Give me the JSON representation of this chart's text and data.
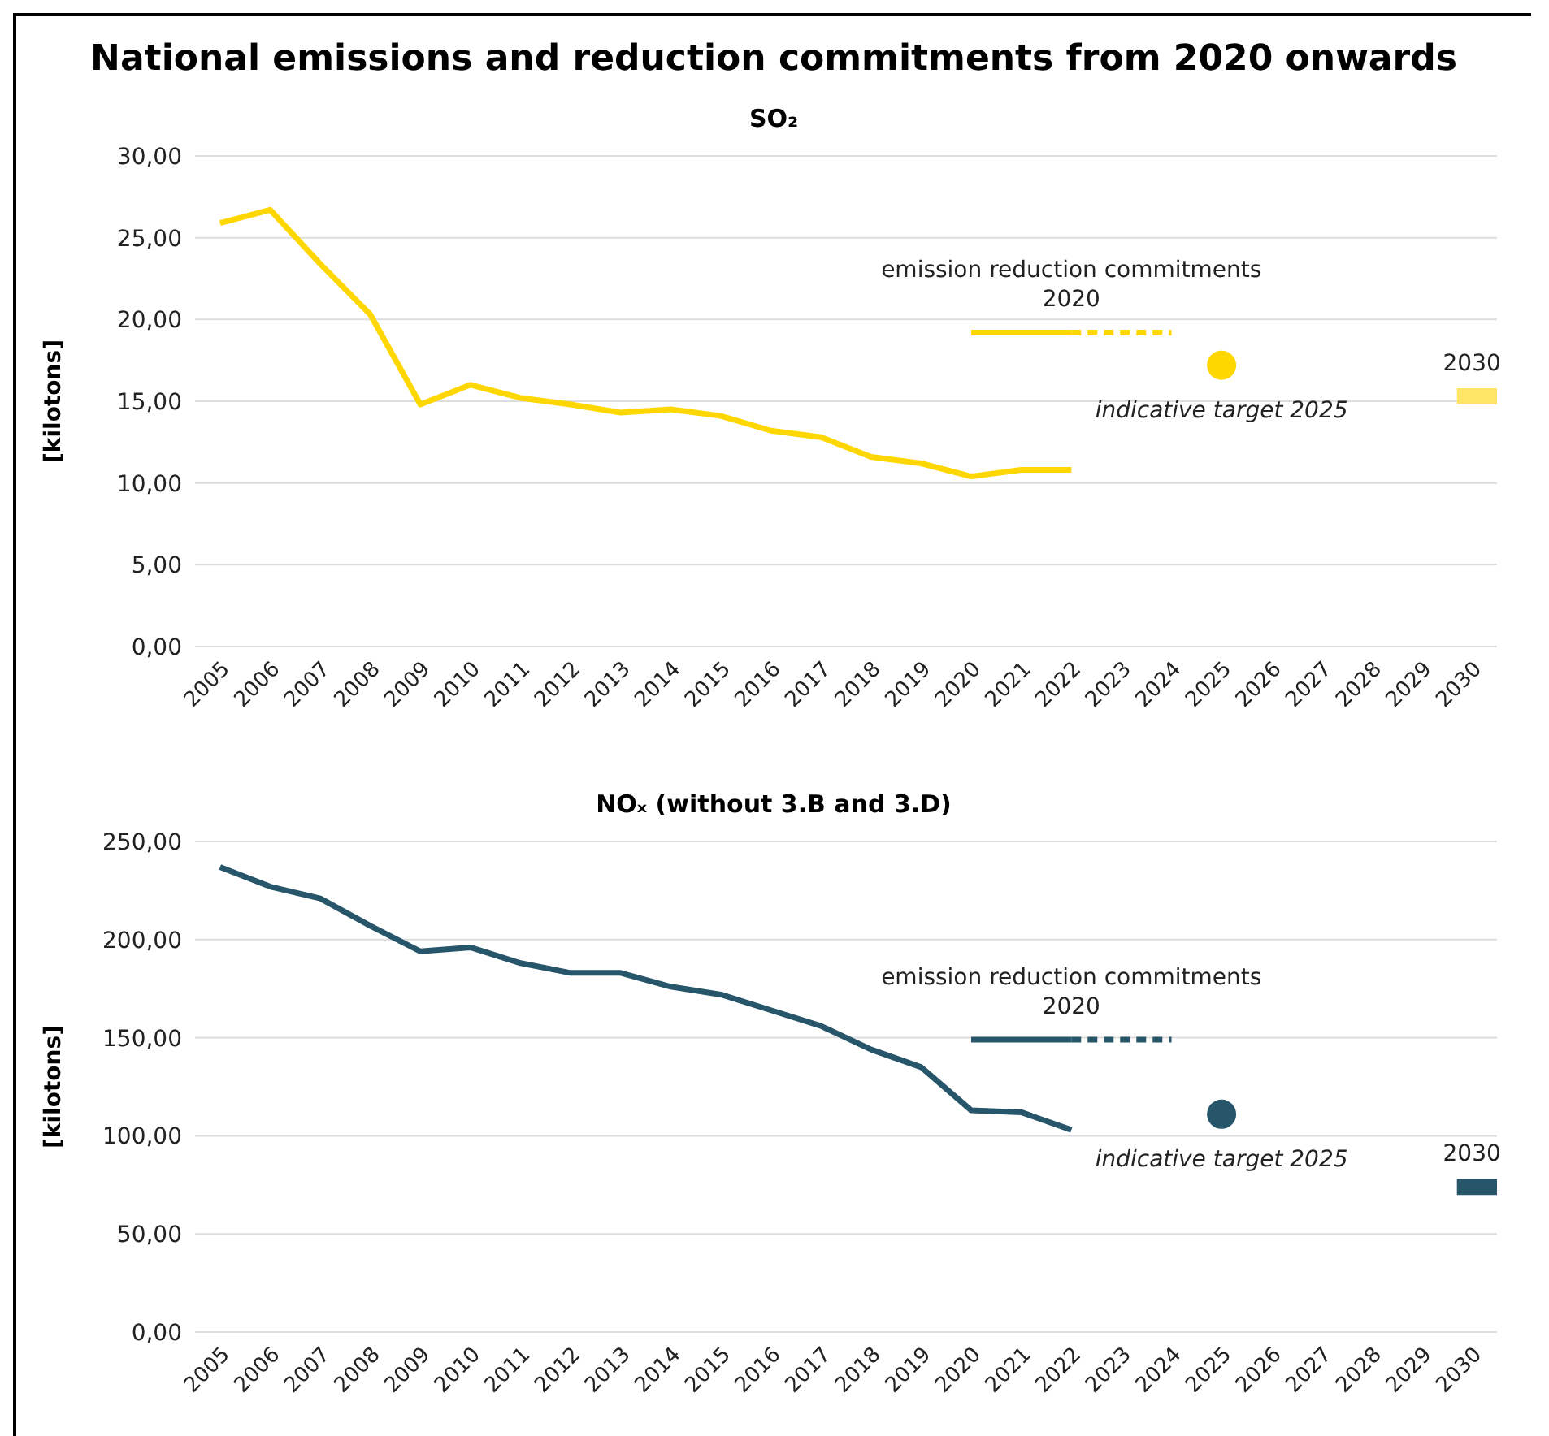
{
  "chart_data": [
    {
      "type": "line",
      "title": "National emissions and reduction commitments from 2020 onwards",
      "subtitle": "SO₂",
      "ylabel": "[kilotons]",
      "xlim": [
        2004.5,
        2030.5
      ],
      "xticks": [
        2005,
        2006,
        2007,
        2008,
        2009,
        2010,
        2011,
        2012,
        2013,
        2014,
        2015,
        2016,
        2017,
        2018,
        2019,
        2020,
        2021,
        2022,
        2023,
        2024,
        2025,
        2026,
        2027,
        2028,
        2029,
        2030
      ],
      "series": [
        {
          "type": "line",
          "color": "#ffd700",
          "line_style": "solid",
          "x": [
            2005,
            2006,
            2007,
            2008,
            2009,
            2010,
            2011,
            2012,
            2013,
            2014,
            2015,
            2016,
            2017,
            2018,
            2019,
            2020,
            2021,
            2022
          ],
          "values": [
            25.9,
            26.7,
            23.4,
            20.3,
            14.8,
            16.0,
            15.2,
            14.8,
            14.3,
            14.5,
            14.1,
            13.2,
            12.8,
            11.6,
            11.2,
            10.4,
            10.8,
            10.8
          ]
        },
        {
          "type": "line",
          "color": "#ffd700",
          "line_style": "solid",
          "x": [
            2020,
            2022
          ],
          "values": [
            19.2,
            19.2
          ]
        },
        {
          "type": "line",
          "color": "#ffd700",
          "line_style": "dashed",
          "x": [
            2022,
            2024
          ],
          "values": [
            19.2,
            19.2
          ]
        },
        {
          "type": "scatter",
          "color": "#ffd700",
          "marker": "circle",
          "x": [
            2025
          ],
          "values": [
            17.2
          ]
        },
        {
          "type": "line",
          "color": "#ffe566",
          "line_style": "solid",
          "x": [
            2029.7,
            2030.5
          ],
          "values": [
            15.3,
            15.3
          ]
        }
      ],
      "ylim": [
        0,
        30
      ],
      "yticks": [
        {
          "value": 0,
          "label": "0,00"
        },
        {
          "value": 5,
          "label": "5,00"
        },
        {
          "value": 10,
          "label": "10,00"
        },
        {
          "value": 15,
          "label": "15,00"
        },
        {
          "value": 20,
          "label": "20,00"
        },
        {
          "value": 25,
          "label": "25,00"
        },
        {
          "value": 30,
          "label": "30,00"
        }
      ],
      "grid": "y",
      "legend": false,
      "annotations": [
        {
          "text": "emission reduction commitments 2020",
          "x": 2022,
          "y": 19.2
        },
        {
          "text": "indicative target 2025",
          "x": 2025,
          "y": 17.2
        },
        {
          "text": "2030",
          "x": 2030,
          "y": 15.3
        }
      ]
    },
    {
      "type": "line",
      "subtitle": "NOₓ (without 3.B and 3.D)",
      "ylabel": "[kilotons]",
      "xlim": [
        2004.5,
        2030.5
      ],
      "xticks": [
        2005,
        2006,
        2007,
        2008,
        2009,
        2010,
        2011,
        2012,
        2013,
        2014,
        2015,
        2016,
        2017,
        2018,
        2019,
        2020,
        2021,
        2022,
        2023,
        2024,
        2025,
        2026,
        2027,
        2028,
        2029,
        2030
      ],
      "series": [
        {
          "type": "line",
          "color": "#27566b",
          "line_style": "solid",
          "x": [
            2005,
            2006,
            2007,
            2008,
            2009,
            2010,
            2011,
            2012,
            2013,
            2014,
            2015,
            2016,
            2017,
            2018,
            2019,
            2020,
            2021,
            2022
          ],
          "values": [
            237,
            227,
            221,
            207,
            194,
            196,
            188,
            183,
            183,
            176,
            172,
            164,
            156,
            144,
            135,
            113,
            112,
            103
          ]
        },
        {
          "type": "line",
          "color": "#27566b",
          "line_style": "solid",
          "x": [
            2020,
            2022
          ],
          "values": [
            149,
            149
          ]
        },
        {
          "type": "line",
          "color": "#27566b",
          "line_style": "dashed",
          "x": [
            2022,
            2024
          ],
          "values": [
            149,
            149
          ]
        },
        {
          "type": "scatter",
          "color": "#27566b",
          "marker": "circle",
          "x": [
            2025
          ],
          "values": [
            111
          ]
        },
        {
          "type": "line",
          "color": "#27566b",
          "line_style": "solid",
          "x": [
            2029.7,
            2030.5
          ],
          "values": [
            74,
            74
          ]
        }
      ],
      "ylim": [
        0,
        250
      ],
      "yticks": [
        {
          "value": 0,
          "label": "0,00"
        },
        {
          "value": 50,
          "label": "50,00"
        },
        {
          "value": 100,
          "label": "100,00"
        },
        {
          "value": 150,
          "label": "150,00"
        },
        {
          "value": 200,
          "label": "200,00"
        },
        {
          "value": 250,
          "label": "250,00"
        }
      ],
      "grid": "y",
      "legend": false,
      "annotations": [
        {
          "text": "emission reduction commitments 2020",
          "x": 2022,
          "y": 149
        },
        {
          "text": "indicative target 2025",
          "x": 2025,
          "y": 111
        },
        {
          "text": "2030",
          "x": 2030,
          "y": 74
        }
      ]
    }
  ]
}
